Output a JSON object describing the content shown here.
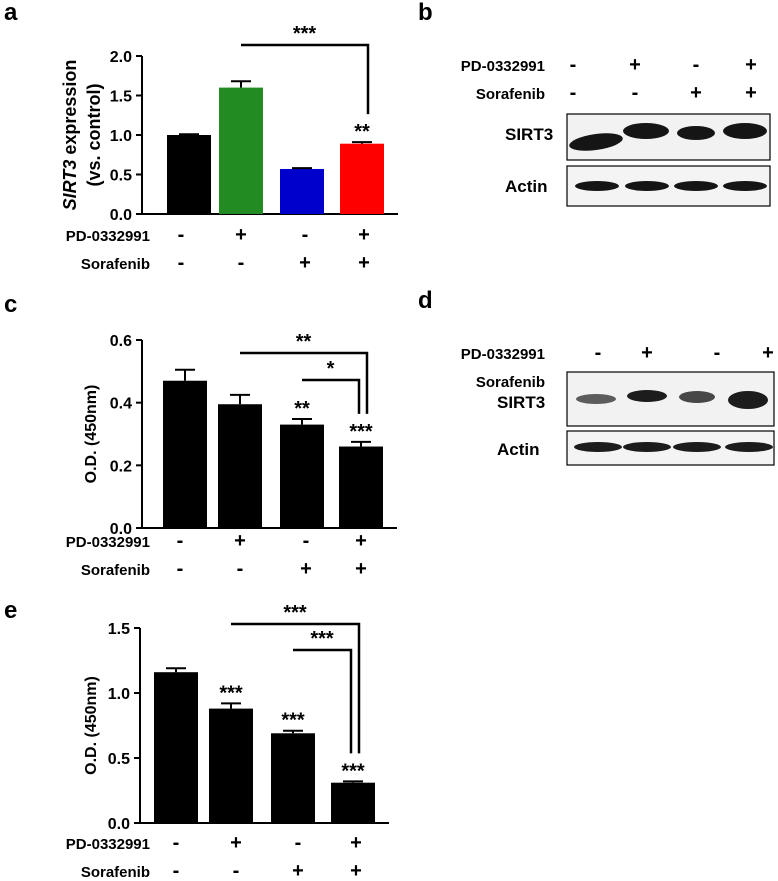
{
  "panels": {
    "a": {
      "letter": "a"
    },
    "b": {
      "letter": "b"
    },
    "c": {
      "letter": "c"
    },
    "d": {
      "letter": "d"
    },
    "e": {
      "letter": "e"
    }
  },
  "conditions": {
    "row1_label": "PD-0332991",
    "row2_label": "Sorafenib",
    "row1_signs": [
      "-",
      "+",
      "-",
      "+"
    ],
    "row2_signs": [
      "-",
      "-",
      "+",
      "+"
    ]
  },
  "chart_data": [
    {
      "panel": "a",
      "type": "bar",
      "categories": [
        "1",
        "2",
        "3",
        "4"
      ],
      "values": [
        1.0,
        1.6,
        0.57,
        0.89
      ],
      "errors": [
        0.01,
        0.08,
        0.01,
        0.02
      ],
      "colors": [
        "#000000",
        "#228B22",
        "#0000CD",
        "#FF0000"
      ],
      "ylabel_italic": "SIRT3",
      "ylabel_rest": " expression",
      "ylabel_line2": "(vs. control)",
      "ylim": [
        0,
        2.0
      ],
      "yticks": [
        "0.0",
        "0.5",
        "1.0",
        "1.5",
        "2.0"
      ],
      "bar_stars": [
        "",
        "",
        "",
        "**"
      ],
      "brackets": [
        {
          "from": 2,
          "to": 4,
          "label": "***"
        }
      ]
    },
    {
      "panel": "c",
      "type": "bar",
      "categories": [
        "1",
        "2",
        "3",
        "4"
      ],
      "values": [
        0.47,
        0.395,
        0.33,
        0.26
      ],
      "errors": [
        0.035,
        0.03,
        0.018,
        0.015
      ],
      "colors": [
        "#000000",
        "#000000",
        "#000000",
        "#000000"
      ],
      "ylabel": "O.D. (450nm)",
      "ylim": [
        0,
        0.6
      ],
      "yticks": [
        "0.0",
        "0.2",
        "0.4",
        "0.6"
      ],
      "bar_stars": [
        "",
        "",
        "**",
        "***"
      ],
      "brackets": [
        {
          "from": 2,
          "to": 4,
          "label": "**"
        },
        {
          "from": 3,
          "to": 4,
          "label": "*"
        }
      ]
    },
    {
      "panel": "e",
      "type": "bar",
      "categories": [
        "1",
        "2",
        "3",
        "4"
      ],
      "values": [
        1.16,
        0.88,
        0.69,
        0.31
      ],
      "errors": [
        0.03,
        0.04,
        0.02,
        0.01
      ],
      "colors": [
        "#000000",
        "#000000",
        "#000000",
        "#000000"
      ],
      "ylabel": "O.D. (450nm)",
      "ylim": [
        0,
        1.5
      ],
      "yticks": [
        "0.0",
        "0.5",
        "1.0",
        "1.5"
      ],
      "bar_stars": [
        "",
        "***",
        "***",
        "***"
      ],
      "brackets": [
        {
          "from": 2,
          "to": 4,
          "label": "***"
        },
        {
          "from": 3,
          "to": 4,
          "label": "***"
        }
      ]
    }
  ],
  "blots": {
    "b": {
      "rows": [
        "SIRT3",
        "Actin"
      ]
    },
    "d": {
      "rows": [
        "SIRT3",
        "Actin"
      ]
    }
  }
}
